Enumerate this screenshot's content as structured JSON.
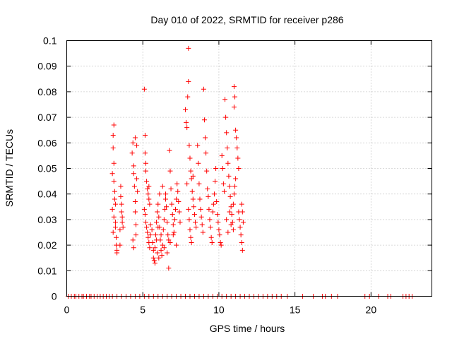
{
  "chart_data": {
    "type": "scatter",
    "title": "Day 010 of 2022, SRMTID for receiver p286",
    "xlabel": "GPS time / hours",
    "ylabel": "SRMTID / TECUs",
    "xlim": [
      0,
      24
    ],
    "ylim": [
      0,
      0.1
    ],
    "xticks": [
      0,
      5,
      10,
      15,
      20
    ],
    "xtick_labels": [
      "0",
      "5",
      "10",
      "15",
      "20"
    ],
    "yticks": [
      0,
      0.01,
      0.02,
      0.03,
      0.04,
      0.05,
      0.06,
      0.07,
      0.08,
      0.09,
      0.1
    ],
    "ytick_labels": [
      "0",
      "0.01",
      "0.02",
      "0.03",
      "0.04",
      "0.05",
      "0.06",
      "0.07",
      "0.08",
      "0.09",
      "0.1"
    ],
    "grid": true,
    "marker": "+",
    "series": [
      {
        "name": "SRMTID",
        "color": "#ff0000",
        "points": [
          [
            3.0,
            0.048
          ],
          [
            3.0,
            0.034
          ],
          [
            3.05,
            0.063
          ],
          [
            3.05,
            0.058
          ],
          [
            3.1,
            0.067
          ],
          [
            3.1,
            0.052
          ],
          [
            3.1,
            0.045
          ],
          [
            3.15,
            0.041
          ],
          [
            3.15,
            0.038
          ],
          [
            3.2,
            0.036
          ],
          [
            3.2,
            0.029
          ],
          [
            3.2,
            0.027
          ],
          [
            3.25,
            0.023
          ],
          [
            3.25,
            0.02
          ],
          [
            3.3,
            0.018
          ],
          [
            3.3,
            0.017
          ],
          [
            3.1,
            0.031
          ],
          [
            3.05,
            0.025
          ],
          [
            3.55,
            0.043
          ],
          [
            3.55,
            0.039
          ],
          [
            3.6,
            0.036
          ],
          [
            3.6,
            0.033
          ],
          [
            3.65,
            0.031
          ],
          [
            3.65,
            0.029
          ],
          [
            3.7,
            0.027
          ],
          [
            3.5,
            0.026
          ],
          [
            3.5,
            0.02
          ],
          [
            4.3,
            0.056
          ],
          [
            4.35,
            0.06
          ],
          [
            4.4,
            0.051
          ],
          [
            4.4,
            0.048
          ],
          [
            4.45,
            0.043
          ],
          [
            4.5,
            0.037
          ],
          [
            4.5,
            0.033
          ],
          [
            4.55,
            0.028
          ],
          [
            4.55,
            0.024
          ],
          [
            4.35,
            0.022
          ],
          [
            4.4,
            0.019
          ],
          [
            4.6,
            0.059
          ],
          [
            4.6,
            0.046
          ],
          [
            4.65,
            0.041
          ],
          [
            4.5,
            0.062
          ],
          [
            5.1,
            0.081
          ],
          [
            5.15,
            0.063
          ],
          [
            5.15,
            0.056
          ],
          [
            5.2,
            0.052
          ],
          [
            5.2,
            0.049
          ],
          [
            5.25,
            0.045
          ],
          [
            5.3,
            0.042
          ],
          [
            5.35,
            0.04
          ],
          [
            5.4,
            0.043
          ],
          [
            5.4,
            0.038
          ],
          [
            5.45,
            0.036
          ],
          [
            5.1,
            0.034
          ],
          [
            5.15,
            0.032
          ],
          [
            5.2,
            0.029
          ],
          [
            5.25,
            0.027
          ],
          [
            5.3,
            0.025
          ],
          [
            5.35,
            0.023
          ],
          [
            5.4,
            0.021
          ],
          [
            5.45,
            0.019
          ],
          [
            5.5,
            0.024
          ],
          [
            5.5,
            0.028
          ],
          [
            5.6,
            0.026
          ],
          [
            5.65,
            0.021
          ],
          [
            5.7,
            0.018
          ],
          [
            5.7,
            0.015
          ],
          [
            5.75,
            0.014
          ],
          [
            5.8,
            0.013
          ],
          [
            5.8,
            0.019
          ],
          [
            5.85,
            0.024
          ],
          [
            5.9,
            0.029
          ],
          [
            5.95,
            0.033
          ],
          [
            6.0,
            0.036
          ],
          [
            6.05,
            0.031
          ],
          [
            6.1,
            0.027
          ],
          [
            6.15,
            0.022
          ],
          [
            6.2,
            0.018
          ],
          [
            6.25,
            0.016
          ],
          [
            6.3,
            0.02
          ],
          [
            6.35,
            0.026
          ],
          [
            6.4,
            0.03
          ],
          [
            6.45,
            0.034
          ],
          [
            6.5,
            0.038
          ],
          [
            6.55,
            0.035
          ],
          [
            6.6,
            0.029
          ],
          [
            6.65,
            0.024
          ],
          [
            6.7,
            0.022
          ],
          [
            6.7,
            0.011
          ],
          [
            6.75,
            0.057
          ],
          [
            6.8,
            0.049
          ],
          [
            6.85,
            0.042
          ],
          [
            6.9,
            0.036
          ],
          [
            6.95,
            0.032
          ],
          [
            7.0,
            0.028
          ],
          [
            7.05,
            0.025
          ],
          [
            7.1,
            0.03
          ],
          [
            7.15,
            0.034
          ],
          [
            7.2,
            0.038
          ],
          [
            7.25,
            0.044
          ],
          [
            7.3,
            0.041
          ],
          [
            7.35,
            0.037
          ],
          [
            7.4,
            0.033
          ],
          [
            7.45,
            0.029
          ],
          [
            5.9,
            0.022
          ],
          [
            6.0,
            0.027
          ],
          [
            6.2,
            0.024
          ],
          [
            6.4,
            0.019
          ],
          [
            6.6,
            0.017
          ],
          [
            6.8,
            0.021
          ],
          [
            7.0,
            0.024
          ],
          [
            7.2,
            0.02
          ],
          [
            6.1,
            0.04
          ],
          [
            6.3,
            0.043
          ],
          [
            6.5,
            0.04
          ],
          [
            5.95,
            0.017
          ],
          [
            6.05,
            0.015
          ],
          [
            7.8,
            0.073
          ],
          [
            7.85,
            0.068
          ],
          [
            7.9,
            0.066
          ],
          [
            7.95,
            0.078
          ],
          [
            8.0,
            0.084
          ],
          [
            8.0,
            0.097
          ],
          [
            8.05,
            0.059
          ],
          [
            8.1,
            0.054
          ],
          [
            8.15,
            0.049
          ],
          [
            8.2,
            0.046
          ],
          [
            8.25,
            0.041
          ],
          [
            8.3,
            0.038
          ],
          [
            8.35,
            0.035
          ],
          [
            8.4,
            0.032
          ],
          [
            8.0,
            0.034
          ],
          [
            8.05,
            0.03
          ],
          [
            8.1,
            0.026
          ],
          [
            8.15,
            0.023
          ],
          [
            8.2,
            0.021
          ],
          [
            7.9,
            0.044
          ],
          [
            8.3,
            0.047
          ],
          [
            8.45,
            0.029
          ],
          [
            8.5,
            0.027
          ],
          [
            8.6,
            0.059
          ],
          [
            8.65,
            0.052
          ],
          [
            8.7,
            0.044
          ],
          [
            8.75,
            0.038
          ],
          [
            8.8,
            0.034
          ],
          [
            8.85,
            0.031
          ],
          [
            8.9,
            0.028
          ],
          [
            8.95,
            0.025
          ],
          [
            9.0,
            0.081
          ],
          [
            9.05,
            0.069
          ],
          [
            9.1,
            0.062
          ],
          [
            9.15,
            0.056
          ],
          [
            9.2,
            0.049
          ],
          [
            9.25,
            0.042
          ],
          [
            9.3,
            0.039
          ],
          [
            9.35,
            0.034
          ],
          [
            9.4,
            0.03
          ],
          [
            9.45,
            0.027
          ],
          [
            9.5,
            0.023
          ],
          [
            9.55,
            0.021
          ],
          [
            9.6,
            0.033
          ],
          [
            9.65,
            0.036
          ],
          [
            9.7,
            0.04
          ],
          [
            9.75,
            0.045
          ],
          [
            9.8,
            0.05
          ],
          [
            9.85,
            0.037
          ],
          [
            9.9,
            0.032
          ],
          [
            9.95,
            0.029
          ],
          [
            10.0,
            0.026
          ],
          [
            10.05,
            0.024
          ],
          [
            10.1,
            0.021
          ],
          [
            10.15,
            0.02
          ],
          [
            10.2,
            0.055
          ],
          [
            10.25,
            0.05
          ],
          [
            10.3,
            0.044
          ],
          [
            10.35,
            0.041
          ],
          [
            10.4,
            0.077
          ],
          [
            10.45,
            0.07
          ],
          [
            10.5,
            0.064
          ],
          [
            10.55,
            0.058
          ],
          [
            10.6,
            0.052
          ],
          [
            10.65,
            0.047
          ],
          [
            10.7,
            0.043
          ],
          [
            10.75,
            0.039
          ],
          [
            10.8,
            0.035
          ],
          [
            10.85,
            0.032
          ],
          [
            10.9,
            0.029
          ],
          [
            10.95,
            0.026
          ],
          [
            11.0,
            0.082
          ],
          [
            11.0,
            0.074
          ],
          [
            11.05,
            0.078
          ],
          [
            11.1,
            0.065
          ],
          [
            11.15,
            0.062
          ],
          [
            11.2,
            0.058
          ],
          [
            11.25,
            0.054
          ],
          [
            11.3,
            0.05
          ],
          [
            11.1,
            0.046
          ],
          [
            11.05,
            0.043
          ],
          [
            11.0,
            0.04
          ],
          [
            10.95,
            0.036
          ],
          [
            11.3,
            0.033
          ],
          [
            11.35,
            0.03
          ],
          [
            11.4,
            0.027
          ],
          [
            11.45,
            0.024
          ],
          [
            11.5,
            0.021
          ],
          [
            11.55,
            0.018
          ],
          [
            11.6,
            0.029
          ],
          [
            11.55,
            0.033
          ],
          [
            11.5,
            0.036
          ],
          [
            10.5,
            0.03
          ],
          [
            10.7,
            0.033
          ],
          [
            10.8,
            0.028
          ],
          [
            10.6,
            0.025
          ]
        ]
      }
    ],
    "zero_series_x": [
      0.1,
      0.3,
      0.5,
      0.6,
      0.8,
      1.0,
      1.1,
      1.3,
      1.5,
      1.6,
      1.8,
      2.0,
      2.2,
      2.4,
      2.6,
      2.8,
      3.0,
      3.3,
      3.6,
      3.9,
      4.2,
      4.5,
      4.8,
      5.1,
      5.4,
      5.7,
      6.0,
      6.3,
      6.6,
      6.9,
      7.2,
      7.5,
      7.8,
      8.1,
      8.4,
      8.7,
      9.0,
      9.3,
      9.6,
      9.9,
      10.2,
      10.5,
      10.8,
      11.1,
      11.4,
      11.7,
      12.0,
      12.3,
      12.6,
      12.9,
      13.2,
      13.5,
      13.8,
      14.1,
      14.5,
      15.5,
      16.2,
      16.8,
      17.0,
      17.4,
      17.8,
      19.6,
      19.9,
      20.5,
      21.1,
      21.3,
      22.1,
      22.3,
      22.5,
      22.7
    ]
  }
}
